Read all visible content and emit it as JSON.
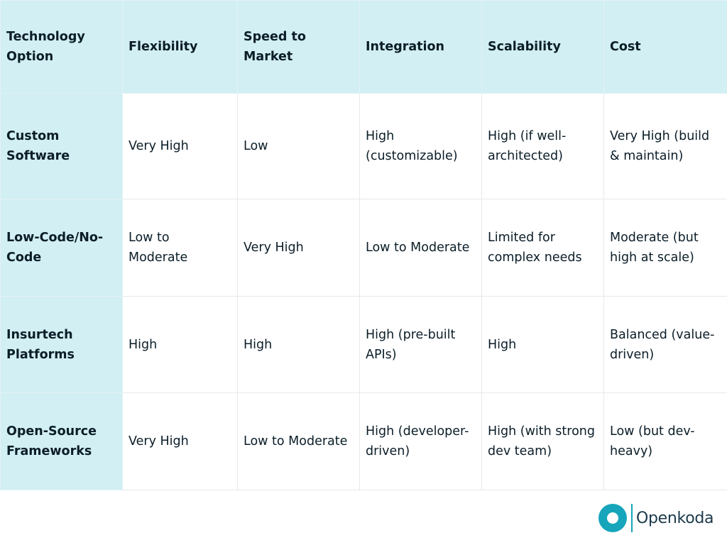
{
  "table": {
    "headers": [
      "Technology Option",
      "Flexibility",
      "Speed to Market",
      "Integration",
      "Scalability",
      "Cost"
    ],
    "rows": [
      {
        "option": "Custom Software",
        "flexibility": "Very High",
        "speed": "Low",
        "integration": "High (customizable)",
        "scalability": "High (if well-architected)",
        "cost": "Very High (build & maintain)"
      },
      {
        "option": "Low-Code/No-Code",
        "flexibility": "Low to Moderate",
        "speed": "Very High",
        "integration": "Low to Moderate",
        "scalability": "Limited for complex needs",
        "cost": "Moderate (but high at scale)"
      },
      {
        "option": "Insurtech Platforms",
        "flexibility": "High",
        "speed": "High",
        "integration": "High (pre-built APIs)",
        "scalability": "High",
        "cost": "Balanced (value-driven)"
      },
      {
        "option": "Open-Source Frameworks",
        "flexibility": "Very High",
        "speed": "Low to Moderate",
        "integration": "High (developer-driven)",
        "scalability": "High (with strong dev team)",
        "cost": "Low (but dev-heavy)"
      }
    ]
  },
  "logo": {
    "text": "Openkoda",
    "icon": "openkoda-ring-icon",
    "color": "#16a5bb"
  },
  "colors": {
    "header_bg": "#d2eff3",
    "text": "#0b1d28",
    "grid": "#e6e9ea"
  }
}
